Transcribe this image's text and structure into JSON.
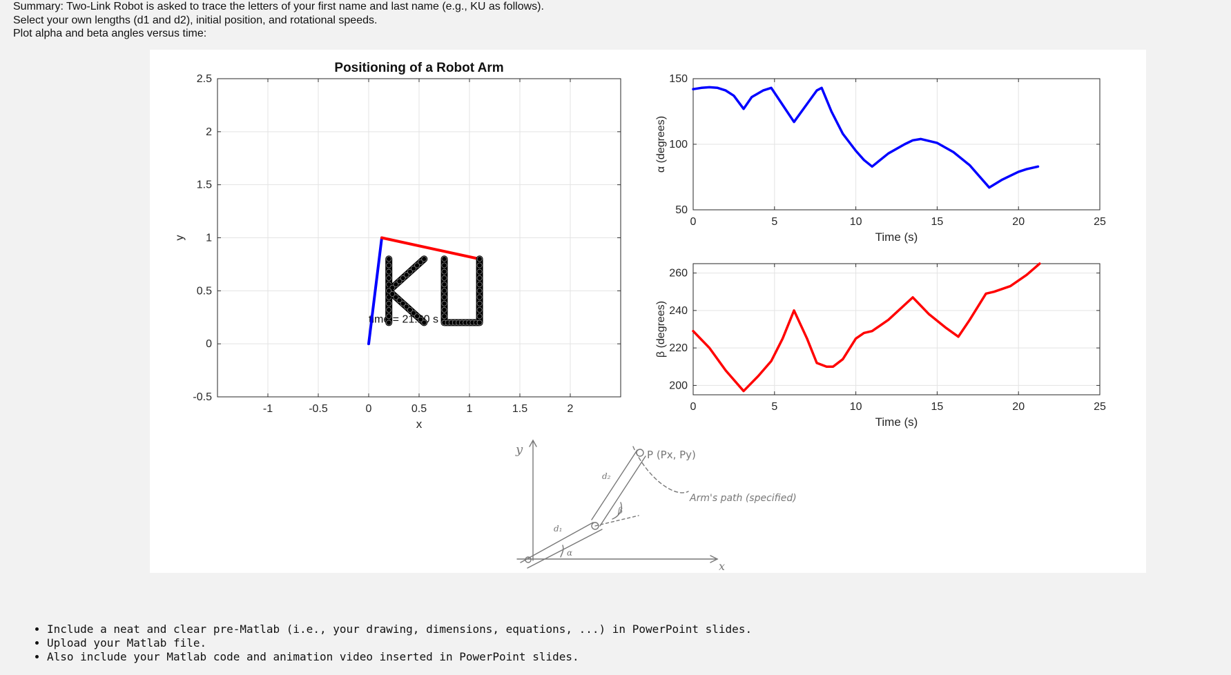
{
  "intro": {
    "line1": "Summary: Two-Link Robot is asked to trace the letters of your first name and last name (e.g., KU as follows).",
    "line2": "Select your own lengths (d1 and d2), initial position, and rotational speeds.",
    "line3": "Plot alpha and beta angles versus time:"
  },
  "bullets": [
    "Include a neat and clear pre-Matlab (i.e., your drawing, dimensions, equations, ...) in PowerPoint slides.",
    "Upload your Matlab file.",
    "Also include your Matlab code and animation video inserted in PowerPoint slides."
  ],
  "sketch": {
    "y_label": "y",
    "x_label": "x",
    "d1_label": "d₁",
    "d2_label": "d₂",
    "alpha_label": "α",
    "beta_label": "β",
    "point_label": "P (Px, Py)",
    "path_label": "Arm's path (specified)"
  },
  "colors": {
    "link1": "#0000ff",
    "link2": "#ff0000",
    "letters": "#000000",
    "alpha_line": "#0000ff",
    "beta_line": "#ff0000"
  },
  "chart_data": [
    {
      "type": "line",
      "title": "Positioning of a Robot Arm",
      "xlabel": "x",
      "ylabel": "y",
      "xlim": [
        -1.5,
        2.5
      ],
      "ylim": [
        -0.5,
        2.5
      ],
      "xticks": [
        -1,
        -0.5,
        0,
        0.5,
        1,
        1.5,
        2
      ],
      "yticks": [
        -0.5,
        0,
        0.5,
        1,
        1.5,
        2,
        2.5
      ],
      "grid": true,
      "annotation": "time = 21.20 s",
      "annotation_pos": [
        0,
        0.2
      ],
      "series": [
        {
          "role": "link1",
          "x": [
            0,
            0.13
          ],
          "y": [
            0,
            1.0
          ]
        },
        {
          "role": "link2",
          "x": [
            0.13,
            1.1
          ],
          "y": [
            1.0,
            0.8
          ]
        },
        {
          "role": "letter-K-stem",
          "x": [
            0.2,
            0.2
          ],
          "y": [
            0.2,
            0.8
          ]
        },
        {
          "role": "letter-K-upper",
          "x": [
            0.2,
            0.55
          ],
          "y": [
            0.5,
            0.8
          ]
        },
        {
          "role": "letter-K-lower",
          "x": [
            0.2,
            0.55
          ],
          "y": [
            0.5,
            0.2
          ]
        },
        {
          "role": "letter-U",
          "x": [
            0.75,
            0.75,
            1.1,
            1.1
          ],
          "y": [
            0.8,
            0.2,
            0.2,
            0.8
          ]
        }
      ]
    },
    {
      "type": "line",
      "xlabel": "Time (s)",
      "ylabel": "α (degrees)",
      "xlim": [
        0,
        25
      ],
      "ylim": [
        50,
        150
      ],
      "xticks": [
        0,
        5,
        10,
        15,
        20,
        25
      ],
      "yticks": [
        50,
        100,
        150
      ],
      "grid": true,
      "series": [
        {
          "role": "alpha",
          "x": [
            0,
            0.5,
            1,
            1.5,
            2,
            2.5,
            3.1,
            3.6,
            4.3,
            4.8,
            5.5,
            6.2,
            6.9,
            7.6,
            7.9,
            8.5,
            9.2,
            10,
            10.5,
            11,
            12,
            13,
            13.5,
            14,
            15,
            16,
            17,
            18.2,
            19,
            20,
            20.5,
            21.2
          ],
          "y": [
            142,
            143,
            143.5,
            143,
            141,
            137,
            127,
            136,
            141,
            143,
            130,
            117,
            129,
            141,
            143,
            125,
            108,
            95,
            88,
            83,
            93,
            100,
            103,
            104,
            101,
            94,
            84,
            67,
            73,
            79,
            81,
            83
          ]
        }
      ]
    },
    {
      "type": "line",
      "xlabel": "Time (s)",
      "ylabel": "β (degrees)",
      "xlim": [
        0,
        25
      ],
      "ylim": [
        195,
        265
      ],
      "xticks": [
        0,
        5,
        10,
        15,
        20,
        25
      ],
      "yticks": [
        200,
        220,
        240,
        260
      ],
      "grid": true,
      "series": [
        {
          "role": "beta",
          "x": [
            0,
            1,
            2,
            3.1,
            4,
            4.8,
            5.5,
            6.2,
            7,
            7.6,
            8.2,
            8.6,
            9.2,
            10,
            10.5,
            11,
            12,
            13.5,
            14.5,
            15.5,
            16.3,
            17,
            18,
            18.5,
            19.5,
            20.5,
            21.3
          ],
          "y": [
            229,
            220,
            208,
            197,
            205,
            213,
            225,
            240,
            225,
            212,
            210,
            210,
            214,
            225,
            228,
            229,
            235,
            247,
            238,
            231,
            226,
            235,
            249,
            250,
            253,
            259,
            265
          ]
        }
      ]
    }
  ]
}
